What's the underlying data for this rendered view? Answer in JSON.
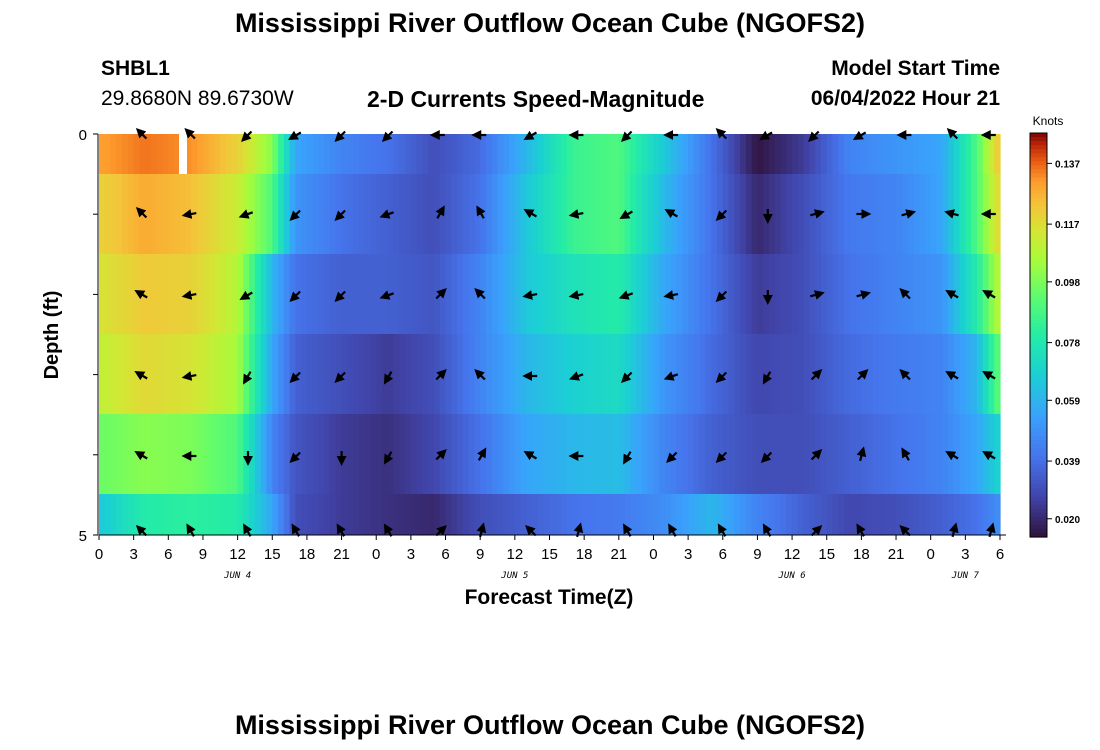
{
  "title": "Mississippi River Outflow Ocean Cube (NGOFS2)",
  "bottom_title": "Mississippi River Outflow Ocean Cube (NGOFS2)",
  "station": {
    "id": "SHBL1",
    "coords": "29.8680N  89.6730W"
  },
  "subtitle": "2-D Currents Speed-Magnitude",
  "model_start": {
    "label": "Model Start Time",
    "value": "06/04/2022 Hour 21"
  },
  "chart_data": {
    "type": "heatmap",
    "xlabel": "Forecast Time(Z)",
    "ylabel": "Depth (ft)",
    "x_ticks": [
      "0",
      "3",
      "6",
      "9",
      "12",
      "15",
      "18",
      "21",
      "0",
      "3",
      "6",
      "9",
      "12",
      "15",
      "18",
      "21",
      "0",
      "3",
      "6",
      "9",
      "12",
      "15",
      "18",
      "21",
      "0",
      "3",
      "6"
    ],
    "x_day_labels": [
      {
        "label": "JUN 4",
        "at_hours": 12
      },
      {
        "label": "JUN 5",
        "at_hours": 36
      },
      {
        "label": "JUN 6",
        "at_hours": 60
      },
      {
        "label": "JUN 7",
        "at_hours": 75
      }
    ],
    "y_ticks": [
      "0",
      "5"
    ],
    "ylim": [
      0,
      5
    ],
    "xlim_hours": [
      0,
      78
    ],
    "colorbar": {
      "label": "Knots",
      "ticks": [
        "0.137",
        "0.117",
        "0.098",
        "0.078",
        "0.059",
        "0.039",
        "0.020"
      ]
    },
    "time_hours": [
      0,
      4,
      8,
      12,
      15,
      17,
      21,
      25,
      29,
      33,
      37,
      41,
      45,
      49,
      53,
      57,
      61,
      65,
      69,
      73,
      76,
      78
    ],
    "depth_rows": [
      "0-1",
      "1-2",
      "2-3",
      "3-4",
      "4-5"
    ],
    "speed_knots": [
      [
        0.13,
        0.135,
        0.132,
        0.12,
        0.1,
        0.055,
        0.045,
        0.04,
        0.03,
        0.038,
        0.06,
        0.085,
        0.09,
        0.065,
        0.04,
        0.015,
        0.025,
        0.045,
        0.05,
        0.055,
        0.09,
        0.125
      ],
      [
        0.12,
        0.128,
        0.124,
        0.112,
        0.09,
        0.05,
        0.04,
        0.035,
        0.03,
        0.04,
        0.065,
        0.085,
        0.09,
        0.06,
        0.04,
        0.02,
        0.03,
        0.042,
        0.045,
        0.055,
        0.09,
        0.12
      ],
      [
        0.115,
        0.122,
        0.12,
        0.108,
        0.06,
        0.04,
        0.035,
        0.035,
        0.032,
        0.045,
        0.065,
        0.075,
        0.08,
        0.055,
        0.04,
        0.025,
        0.03,
        0.04,
        0.045,
        0.05,
        0.08,
        0.11
      ],
      [
        0.11,
        0.118,
        0.115,
        0.105,
        0.055,
        0.035,
        0.03,
        0.025,
        0.03,
        0.045,
        0.06,
        0.068,
        0.072,
        0.05,
        0.038,
        0.028,
        0.03,
        0.038,
        0.042,
        0.045,
        0.06,
        0.095
      ],
      [
        0.095,
        0.1,
        0.098,
        0.09,
        0.045,
        0.032,
        0.025,
        0.022,
        0.028,
        0.04,
        0.055,
        0.06,
        0.062,
        0.045,
        0.035,
        0.03,
        0.03,
        0.035,
        0.04,
        0.045,
        0.055,
        0.07
      ]
    ],
    "bottom_strip_knots": [
      0.065,
      0.08,
      0.082,
      0.08,
      0.055,
      0.03,
      0.025,
      0.022,
      0.02,
      0.03,
      0.035,
      0.04,
      0.042,
      0.048,
      0.06,
      0.045,
      0.035,
      0.028,
      0.03,
      0.035,
      0.04,
      0.048
    ],
    "arrow_hours": [
      3.8,
      8.0,
      12.9,
      17.1,
      21.0,
      25.1,
      29.5,
      33.1,
      37.5,
      41.5,
      45.8,
      49.7,
      54.0,
      57.9,
      62.0,
      66.0,
      69.9,
      74.0,
      77.2
    ],
    "arrow_depth_rows": [
      0,
      1,
      2,
      3,
      4,
      5
    ],
    "arrow_directions_deg": [
      [
        135,
        135,
        225,
        210,
        225,
        225,
        180,
        180,
        210,
        180,
        225,
        180,
        135,
        210,
        225,
        210,
        180,
        135,
        180
      ],
      [
        135,
        190,
        200,
        225,
        225,
        200,
        60,
        120,
        150,
        190,
        210,
        150,
        225,
        270,
        15,
        0,
        15,
        165,
        180
      ],
      [
        150,
        190,
        210,
        225,
        225,
        200,
        45,
        135,
        190,
        190,
        200,
        190,
        225,
        270,
        15,
        15,
        135,
        150,
        150
      ],
      [
        150,
        190,
        240,
        225,
        225,
        240,
        45,
        135,
        180,
        200,
        225,
        200,
        225,
        240,
        45,
        45,
        135,
        150,
        150
      ],
      [
        150,
        180,
        270,
        225,
        270,
        240,
        45,
        60,
        150,
        180,
        240,
        225,
        225,
        225,
        45,
        75,
        120,
        150,
        150
      ],
      [
        135,
        120,
        120,
        120,
        120,
        120,
        45,
        75,
        135,
        75,
        120,
        120,
        120,
        120,
        45,
        120,
        135,
        75,
        75
      ]
    ]
  }
}
